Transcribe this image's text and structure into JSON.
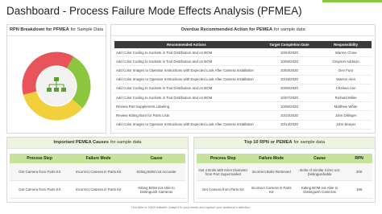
{
  "title": "Dashboard - Process Failure Mode Effects Analysis (PFMEA)",
  "footer": "This slide is 100% editable. Adapt it to your needs and capture your audience's attention.",
  "rpn_panel": {
    "title_bold": "RPN Breakdown for PFMEA",
    "title_rest": "for Sample Data"
  },
  "overdue": {
    "title_bold": "Overdue Recommended Action for PEMEA",
    "title_rest": "for sample data",
    "columns": [
      "Recommended Actions",
      "Target Completion Date",
      "Responsibility"
    ],
    "rows": [
      [
        "Add Color Coding to Sockets in Tool Distribution and on BOM",
        "10/04/2020",
        "Warren Chow"
      ],
      [
        "Add Color Coding to Sockets in Tool Distribution and on BOM",
        "10/09/2020",
        "Grayson Addison"
      ],
      [
        "Add Color Images to Operator Instructions with Expected Look After Camera Installation",
        "10/03/2020",
        "Dev Funt"
      ],
      [
        "Add Color Images to Operator Instructions with Expected Look After Camera Installation",
        "10/15/2020",
        "Warren Alen"
      ],
      [
        "Add Color Coding to Sockets in Tool Distribution and on BOM",
        "10/06/2020",
        "Chelsea Ann"
      ],
      [
        "Add Color Coding to Sockets in Tool Distribution and on BOM",
        "10/07/2020",
        "Richard Miller"
      ],
      [
        "Review Part Supplement Labeling",
        "10/05/2020",
        "Matthew White"
      ],
      [
        "Review Kitting Bom for Parts Lists",
        "10/10/2020",
        "John Dillinger"
      ],
      [
        "Add Color Images to Operator Instructions with Expected Look After Camera Installation",
        "10/14/2020",
        "John Beaver"
      ]
    ]
  },
  "causes": {
    "title_bold": "Important PEMEA Causes",
    "title_rest": "for sample data",
    "columns": [
      "Process Step",
      "Failure Mode",
      "Cause"
    ],
    "rows": [
      [
        "Get Camera from Parts Kit",
        "Incorrect Camera in Parts Kit",
        "Kitting BOM not Accurate"
      ],
      [
        "Get Camera from Parts Kit",
        "Incorrect Camera in Parts Kit",
        "Kitting BOM not Able to Distinguish Cameras"
      ]
    ]
  },
  "top_rpn": {
    "title_bold": "Top 10 RPN or PEMEA",
    "title_rest": "for sample data",
    "columns": [
      "Process Step",
      "Failure Mode",
      "Cause",
      "RPN"
    ],
    "rows": [
      [
        "Get 4 Bolts with 6mm Diameter from Part Supermarket",
        "Incorrect Bolts Retrieved",
        "Bolts of Similar Sizes not Distinguishable",
        "200"
      ],
      [
        "Get Camera from Parts Kit",
        "Incorrect Camera in Parts Kit",
        "Kitting BOM not Able to Distinguish Cameras",
        "196"
      ]
    ]
  }
}
